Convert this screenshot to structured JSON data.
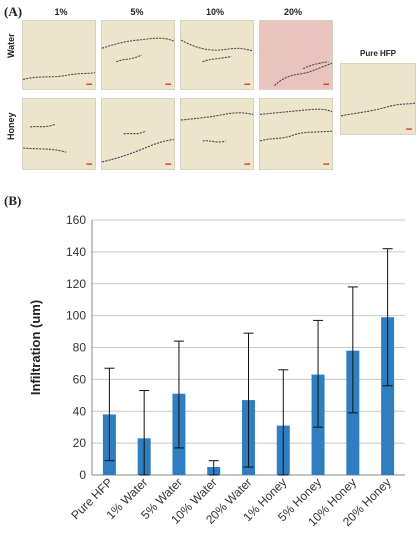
{
  "panel_a": {
    "label": "(A)",
    "columns": [
      "1%",
      "5%",
      "10%",
      "20%"
    ],
    "rows": [
      "Water",
      "Honey"
    ],
    "pure_label": "Pure HFP",
    "colors": {
      "tissue_bg": "#ece5cc",
      "tissue_pink": "#e9c3bd",
      "fiber": "#4a4a52"
    }
  },
  "panel_b": {
    "label": "(B)"
  },
  "chart_data": {
    "type": "bar",
    "categories": [
      "Pure HFP",
      "1% Water",
      "5% Water",
      "10% Water",
      "20% Water",
      "1% Honey",
      "5% Honey",
      "10% Honey",
      "20% Honey"
    ],
    "values": [
      38,
      23,
      51,
      5,
      47,
      31,
      63,
      78,
      99
    ],
    "err_low": [
      9,
      0,
      17,
      0,
      5,
      0,
      30,
      39,
      56
    ],
    "err_high": [
      67,
      53,
      84,
      9,
      89,
      66,
      97,
      118,
      142
    ],
    "title": "",
    "xlabel": "",
    "ylabel": "Infiltration (um)",
    "ylim": [
      0,
      160
    ],
    "yticks": [
      0,
      20,
      40,
      60,
      80,
      100,
      120,
      140,
      160
    ],
    "grid": true,
    "bar_color": "#2f7ec1"
  }
}
